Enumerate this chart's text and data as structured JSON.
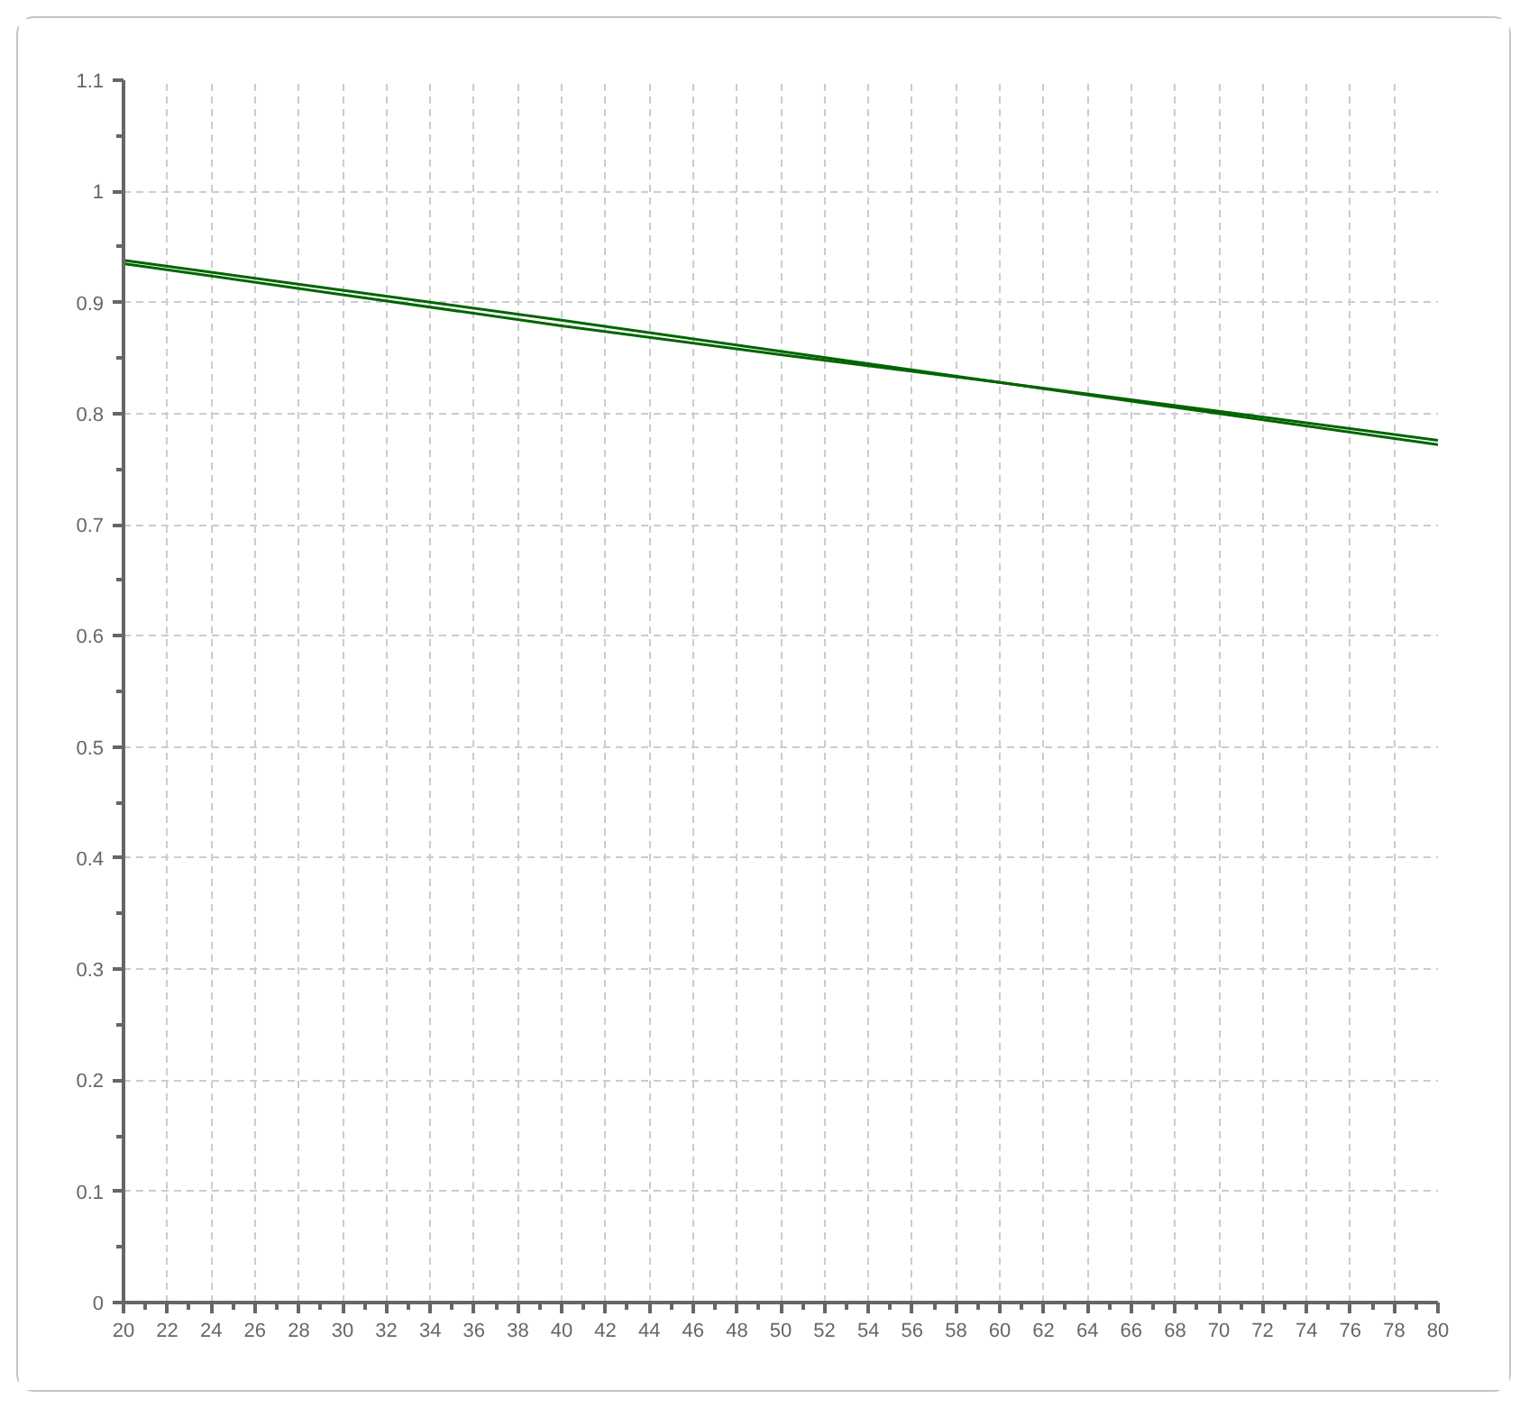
{
  "chart_data": {
    "type": "line",
    "x": [
      20,
      30,
      40,
      50,
      60,
      70,
      80
    ],
    "series": [
      {
        "color": "#006400",
        "values": [
          0.938,
          0.911,
          0.884,
          0.856,
          0.828,
          0.8,
          0.772
        ]
      },
      {
        "color": "#006400",
        "values": [
          0.935,
          0.907,
          0.879,
          0.853,
          0.828,
          0.802,
          0.776
        ]
      }
    ],
    "xlim": [
      20,
      80
    ],
    "ylim": [
      0,
      1.1
    ],
    "xticks": [
      20,
      22,
      24,
      26,
      28,
      30,
      32,
      34,
      36,
      38,
      40,
      42,
      44,
      46,
      48,
      50,
      52,
      54,
      56,
      58,
      60,
      62,
      64,
      66,
      68,
      70,
      72,
      74,
      76,
      78,
      80
    ],
    "yticks": [
      0,
      0.1,
      0.2,
      0.3,
      0.4,
      0.5,
      0.6,
      0.7,
      0.8,
      0.9,
      1,
      1.1
    ],
    "grid": true,
    "marker": "none",
    "line_style": "solid"
  }
}
